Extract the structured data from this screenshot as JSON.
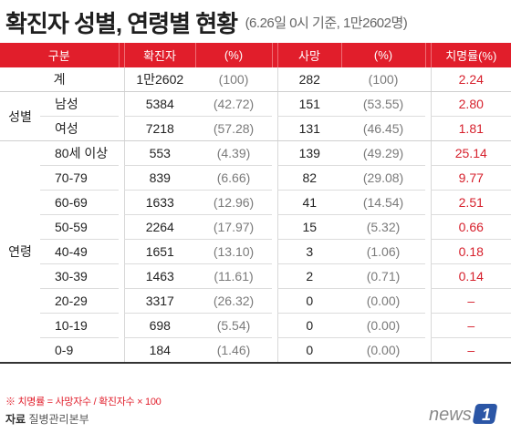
{
  "title": {
    "main": "확진자 성별, 연령별 현황",
    "sub": "(6.26일 0시 기준, 1만2602명)"
  },
  "table": {
    "headers": [
      "구분",
      "확진자",
      "(%)",
      "사망",
      "(%)",
      "치명률(%)"
    ],
    "total": {
      "label": "계",
      "confirmed": "1만2602",
      "confirmed_pct": "(100)",
      "deaths": "282",
      "deaths_pct": "(100)",
      "fatality": "2.24"
    },
    "sex": {
      "group_label": "성별",
      "rows": [
        {
          "label": "남성",
          "confirmed": "5384",
          "confirmed_pct": "(42.72)",
          "deaths": "151",
          "deaths_pct": "(53.55)",
          "fatality": "2.80"
        },
        {
          "label": "여성",
          "confirmed": "7218",
          "confirmed_pct": "(57.28)",
          "deaths": "131",
          "deaths_pct": "(46.45)",
          "fatality": "1.81"
        }
      ]
    },
    "age": {
      "group_label": "연령",
      "rows": [
        {
          "label": "80세 이상",
          "confirmed": "553",
          "confirmed_pct": "(4.39)",
          "deaths": "139",
          "deaths_pct": "(49.29)",
          "fatality": "25.14"
        },
        {
          "label": "70-79",
          "confirmed": "839",
          "confirmed_pct": "(6.66)",
          "deaths": "82",
          "deaths_pct": "(29.08)",
          "fatality": "9.77"
        },
        {
          "label": "60-69",
          "confirmed": "1633",
          "confirmed_pct": "(12.96)",
          "deaths": "41",
          "deaths_pct": "(14.54)",
          "fatality": "2.51"
        },
        {
          "label": "50-59",
          "confirmed": "2264",
          "confirmed_pct": "(17.97)",
          "deaths": "15",
          "deaths_pct": "(5.32)",
          "fatality": "0.66"
        },
        {
          "label": "40-49",
          "confirmed": "1651",
          "confirmed_pct": "(13.10)",
          "deaths": "3",
          "deaths_pct": "(1.06)",
          "fatality": "0.18"
        },
        {
          "label": "30-39",
          "confirmed": "1463",
          "confirmed_pct": "(11.61)",
          "deaths": "2",
          "deaths_pct": "(0.71)",
          "fatality": "0.14"
        },
        {
          "label": "20-29",
          "confirmed": "3317",
          "confirmed_pct": "(26.32)",
          "deaths": "0",
          "deaths_pct": "(0.00)",
          "fatality": "–"
        },
        {
          "label": "10-19",
          "confirmed": "698",
          "confirmed_pct": "(5.54)",
          "deaths": "0",
          "deaths_pct": "(0.00)",
          "fatality": "–"
        },
        {
          "label": "0-9",
          "confirmed": "184",
          "confirmed_pct": "(1.46)",
          "deaths": "0",
          "deaths_pct": "(0.00)",
          "fatality": "–"
        }
      ]
    }
  },
  "footer": {
    "note": "※ 치명률 = 사망자수 / 확진자수 × 100",
    "source_label": "자료",
    "source_value": "질병관리본부",
    "logo_text": "news1"
  },
  "colors": {
    "accent": "#e11e2b",
    "logo_blue": "#2b56a6"
  }
}
